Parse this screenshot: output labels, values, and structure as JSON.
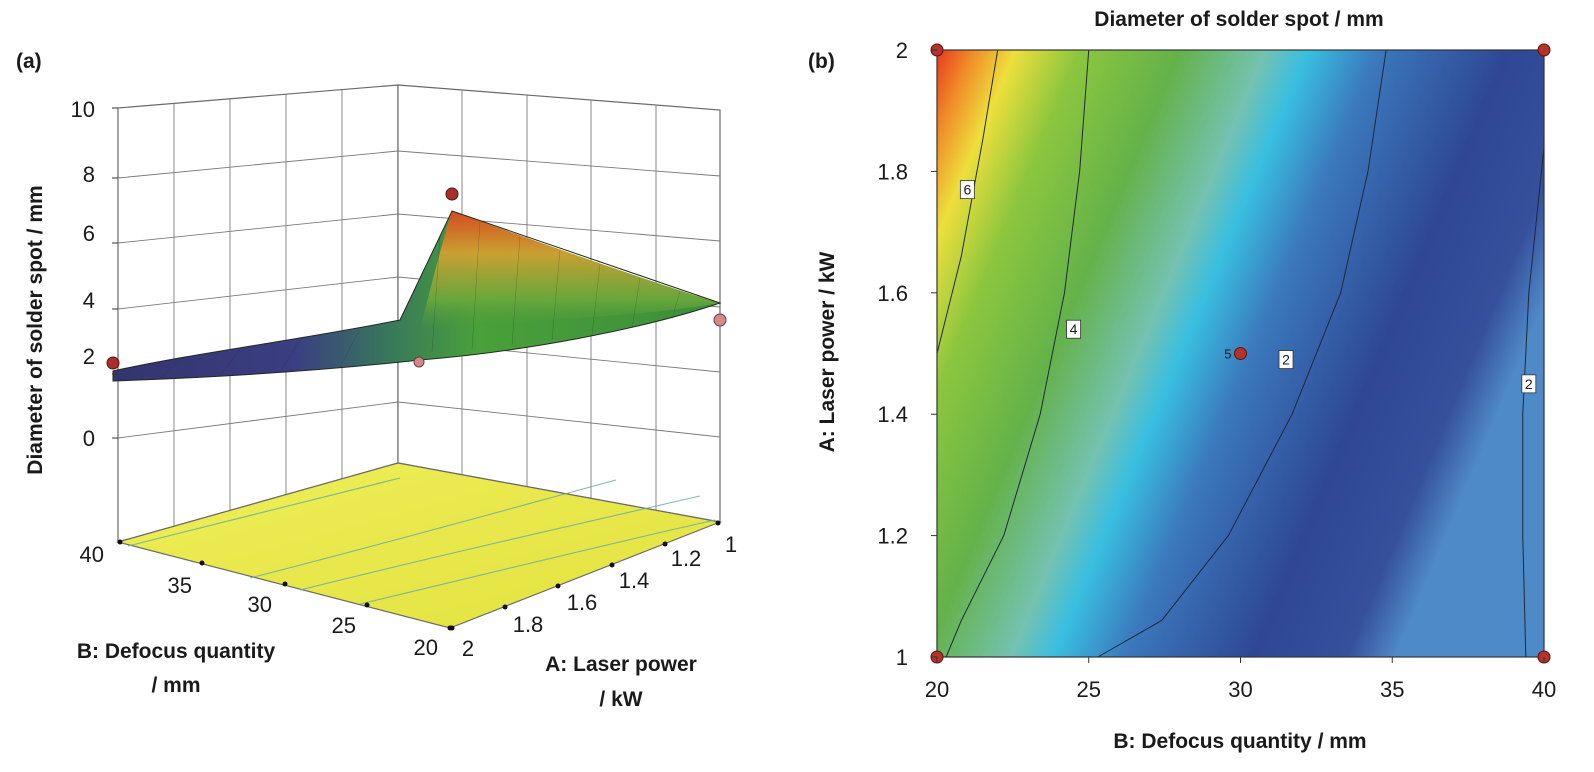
{
  "panel_labels": {
    "a": "(a)",
    "b": "(b)"
  },
  "chart_data": [
    {
      "type": "surface",
      "panel": "(a)",
      "title": "",
      "zlabel": "Diameter of solder spot / mm",
      "xlabel": "B: Defocus quantity / mm",
      "ylabel": "A: Laser power / kW",
      "xlabel_lines": [
        "B: Defocus quantity",
        "/ mm"
      ],
      "ylabel_lines": [
        "A: Laser power",
        "/ kW"
      ],
      "z_ticks": [
        "0",
        "2",
        "4",
        "6",
        "8",
        "10"
      ],
      "b_ticks": [
        "40",
        "35",
        "30",
        "25",
        "20"
      ],
      "a_ticks": [
        "2",
        "1.8",
        "1.6",
        "1.4",
        "1.2",
        "1"
      ],
      "zlim": [
        0,
        10
      ],
      "b_range": [
        20,
        40
      ],
      "a_range": [
        1,
        2
      ],
      "corner_values": [
        {
          "b": 20,
          "a": 2,
          "z": 7.5
        },
        {
          "b": 20,
          "a": 1,
          "z": 3.5
        },
        {
          "b": 40,
          "a": 2,
          "z": 1.5
        },
        {
          "b": 40,
          "a": 1,
          "z": 2.0
        }
      ],
      "design_points": [
        {
          "b": 20,
          "a": 2,
          "z": 8.0,
          "note": "above surface"
        },
        {
          "b": 20,
          "a": 1,
          "z": 3.3,
          "note": "below surface"
        },
        {
          "b": 40,
          "a": 2,
          "z": 2.2,
          "note": "above surface"
        },
        {
          "b": 30,
          "a": 1.5,
          "z": 2.3,
          "note": "below surface"
        }
      ],
      "floor_color": "#ecec50",
      "colors": {
        "high": "#e03018",
        "mid": "#46a838",
        "low": "#3a3c86"
      }
    },
    {
      "type": "contour",
      "panel": "(b)",
      "title": "Diameter of solder spot / mm",
      "xlabel": "B: Defocus quantity / mm",
      "ylabel": "A: Laser power / kW",
      "x_ticks": [
        "20",
        "25",
        "30",
        "35",
        "40"
      ],
      "y_ticks": [
        "1",
        "1.2",
        "1.4",
        "1.6",
        "1.8",
        "2"
      ],
      "xlim": [
        20,
        40
      ],
      "ylim": [
        1,
        2
      ],
      "grid": false,
      "contour_lines": [
        {
          "level": "6",
          "points": [
            [
              22.0,
              2.0
            ],
            [
              21.5,
              1.85
            ],
            [
              20.8,
              1.66
            ],
            [
              20.0,
              1.5
            ]
          ],
          "label_at": [
            21.0,
            1.77
          ]
        },
        {
          "level": "4",
          "points": [
            [
              25.0,
              2.0
            ],
            [
              24.7,
              1.8
            ],
            [
              24.2,
              1.6
            ],
            [
              23.4,
              1.4
            ],
            [
              22.2,
              1.2
            ],
            [
              20.8,
              1.06
            ],
            [
              20.3,
              1.0
            ]
          ],
          "label_at": [
            24.5,
            1.54
          ]
        },
        {
          "level": "2",
          "points": [
            [
              34.8,
              2.0
            ],
            [
              34.2,
              1.8
            ],
            [
              33.3,
              1.6
            ],
            [
              31.7,
              1.4
            ],
            [
              29.6,
              1.2
            ],
            [
              27.4,
              1.06
            ],
            [
              25.3,
              1.0
            ]
          ],
          "label_at": [
            31.5,
            1.49
          ]
        },
        {
          "level": "2",
          "points": [
            [
              40.0,
              1.84
            ],
            [
              39.5,
              1.6
            ],
            [
              39.3,
              1.4
            ],
            [
              39.3,
              1.2
            ],
            [
              39.4,
              1.0
            ]
          ],
          "label_at": [
            39.5,
            1.45
          ]
        }
      ],
      "design_points": [
        {
          "x": 20,
          "y": 2
        },
        {
          "x": 40,
          "y": 2
        },
        {
          "x": 20,
          "y": 1
        },
        {
          "x": 40,
          "y": 1
        },
        {
          "x": 30,
          "y": 1.5,
          "label": "5"
        }
      ],
      "colors": {
        "max": "#e84020",
        "high": "#f0e040",
        "mid_high": "#78be3c",
        "mid": "#3cbedc",
        "mid_low": "#3c82c0",
        "low": "#323c8c",
        "edge": "#4678b4"
      }
    }
  ]
}
